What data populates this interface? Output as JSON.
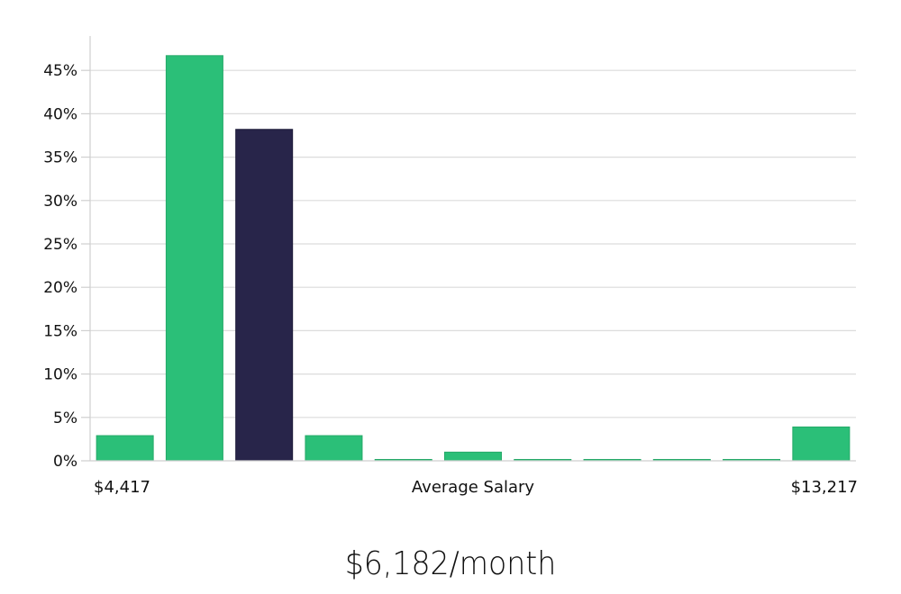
{
  "chart_data": {
    "type": "bar",
    "title": "",
    "xlabel": "Average Salary",
    "ylabel": "",
    "x_min_label": "$4,417",
    "x_max_label": "$13,217",
    "categories": [
      "bin1",
      "bin2",
      "bin3",
      "bin4",
      "bin5",
      "bin6",
      "bin7",
      "bin8",
      "bin9",
      "bin10",
      "bin11"
    ],
    "values": [
      2.9,
      46.7,
      38.2,
      2.9,
      0.0,
      1.0,
      0.0,
      0.0,
      0.0,
      0.0,
      3.9
    ],
    "highlight_index": 2,
    "y_ticks": [
      0,
      5,
      10,
      15,
      20,
      25,
      30,
      35,
      40,
      45
    ],
    "y_tick_labels": [
      "0%",
      "5%",
      "10%",
      "15%",
      "20%",
      "25%",
      "30%",
      "35%",
      "40%",
      "45%"
    ],
    "ylim": [
      0,
      49
    ],
    "grid": true,
    "colors": {
      "bar": "#2bbf78",
      "bar_edge": "#25a968",
      "highlight": "#28254a",
      "highlight_edge": "#1c1a38"
    }
  },
  "summary": {
    "salary_text": "$6,182/month"
  }
}
